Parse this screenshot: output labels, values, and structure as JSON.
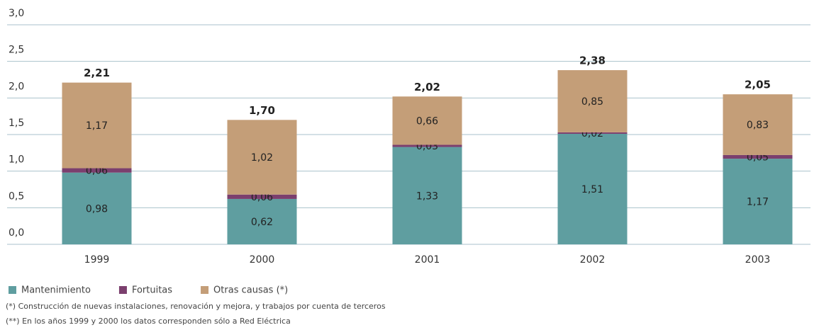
{
  "chart_data": {
    "type": "stacked_bar",
    "categories": [
      "1999",
      "2000",
      "2001",
      "2002",
      "2003"
    ],
    "series": [
      {
        "name": "Mantenimiento",
        "color": "#5f9ea0",
        "values": [
          0.98,
          0.62,
          1.33,
          1.51,
          1.17
        ],
        "value_labels": [
          "0,98",
          "0,62",
          "1,33",
          "1,51",
          "1,17"
        ]
      },
      {
        "name": "Fortuitas",
        "color": "#7b3f6e",
        "values": [
          0.06,
          0.06,
          0.03,
          0.02,
          0.05
        ],
        "value_labels": [
          "0,06",
          "0,06",
          "0,03",
          "0,02",
          "0,05"
        ]
      },
      {
        "name": "Otras causas (*)",
        "color": "#c49e78",
        "values": [
          1.17,
          1.02,
          0.66,
          0.85,
          0.83
        ],
        "value_labels": [
          "1,17",
          "1,02",
          "0,66",
          "0,85",
          "0,83"
        ]
      }
    ],
    "totals": [
      2.21,
      1.7,
      2.02,
      2.38,
      2.05
    ],
    "total_labels": [
      "2,21",
      "1,70",
      "2,02",
      "2,38",
      "2,05"
    ],
    "ylim": [
      0,
      3
    ],
    "yticks": [
      {
        "value": 0,
        "label": "0,0"
      },
      {
        "value": 0.5,
        "label": "0,5"
      },
      {
        "value": 1,
        "label": "1,0"
      },
      {
        "value": 1.5,
        "label": "1,5"
      },
      {
        "value": 2,
        "label": "2,0"
      },
      {
        "value": 2.5,
        "label": "2,5"
      },
      {
        "value": 3,
        "label": "3,0"
      }
    ],
    "grid": true,
    "notes": [
      "(*) Construcción de nuevas instalaciones, renovación y mejora, y trabajos por cuenta de terceros",
      "(**) En los años 1999 y 2000 los datos corresponden sólo a Red Eléctrica"
    ]
  }
}
